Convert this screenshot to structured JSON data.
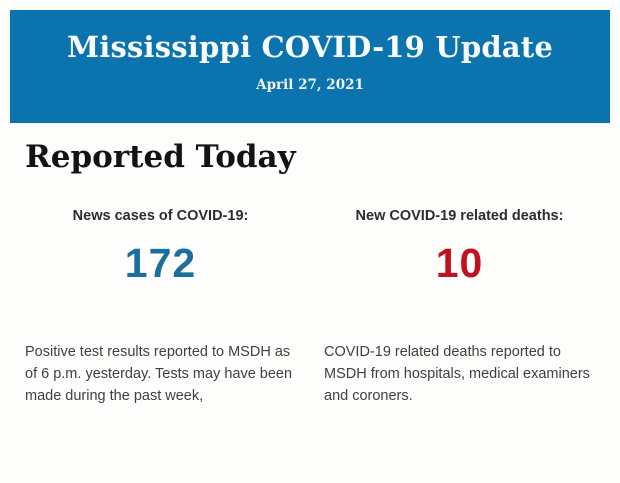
{
  "banner": {
    "title": "Mississippi COVID-19 Update",
    "date": "April 27, 2021",
    "background_color": "#0b73ae",
    "text_color": "#f9fcfd"
  },
  "section": {
    "heading": "Reported Today"
  },
  "stats": [
    {
      "label": "News cases of COVID-19:",
      "value": "172",
      "value_color": "#1b6f9e",
      "description": "Positive test results reported to MSDH as of 6 p.m. yesterday. Tests may have been made during the past week,"
    },
    {
      "label": "New COVID-19 related deaths:",
      "value": "10",
      "value_color": "#c2111c",
      "description": "COVID-19 related deaths reported to MSDH from hospitals, medical examiners and coroners."
    }
  ]
}
